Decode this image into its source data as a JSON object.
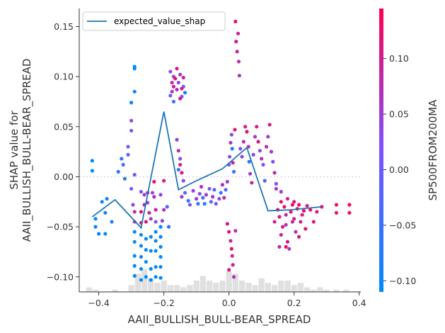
{
  "chart_data": {
    "type": "scatter",
    "title": "",
    "xlabel": "AAII_BULLISH_BULL-BEAR_SPREAD",
    "ylabel_lines": [
      "SHAP value for",
      "AAII_BULLISH_BULL-BEAR_SPREAD"
    ],
    "xlim": [
      -0.46,
      0.405
    ],
    "ylim": [
      -0.115,
      0.168
    ],
    "x_ticks": [
      -0.4,
      -0.2,
      0.0,
      0.2,
      0.4
    ],
    "x_tick_labels": [
      "−0.4",
      "−0.2",
      "0.0",
      "0.2",
      "0.4"
    ],
    "y_ticks": [
      -0.1,
      -0.05,
      0.0,
      0.05,
      0.1,
      0.15
    ],
    "y_tick_labels": [
      "−0.10",
      "−0.05",
      "0.00",
      "0.05",
      "0.10",
      "0.15"
    ],
    "zero_line": 0.0,
    "legend": {
      "entries": [
        "expected_value_shap"
      ],
      "placement": "top-left"
    },
    "line_series": {
      "name": "expected_value_shap",
      "color": "#1f77b4",
      "x": [
        -0.42,
        -0.35,
        -0.27,
        -0.2,
        -0.155,
        -0.1,
        -0.02,
        0.055,
        0.12,
        0.19,
        0.285
      ],
      "y": [
        -0.04,
        -0.023,
        -0.051,
        0.065,
        -0.013,
        -0.004,
        0.008,
        0.029,
        -0.034,
        -0.033,
        -0.03
      ]
    },
    "colorbar": {
      "label": "SP500FROM200MA",
      "range": [
        -0.11,
        0.145
      ],
      "ticks": [
        -0.1,
        -0.05,
        0.0,
        0.05,
        0.1
      ],
      "tick_labels": [
        "−0.10",
        "−0.05",
        "0.00",
        "0.05",
        "0.10"
      ],
      "low_color": "#008afb",
      "mid_color": "#7c52ff",
      "high_color": "#ff0052"
    },
    "histogram": {
      "color": "#e0e0e0",
      "bins": [
        [
          -0.43,
          2
        ],
        [
          -0.41,
          1
        ],
        [
          -0.35,
          1
        ],
        [
          -0.3,
          3
        ],
        [
          -0.28,
          8
        ],
        [
          -0.26,
          10
        ],
        [
          -0.24,
          6
        ],
        [
          -0.22,
          4
        ],
        [
          -0.2,
          5
        ],
        [
          -0.18,
          3
        ],
        [
          -0.16,
          3
        ],
        [
          -0.14,
          2
        ],
        [
          -0.12,
          3
        ],
        [
          -0.1,
          5
        ],
        [
          -0.08,
          7
        ],
        [
          -0.06,
          5
        ],
        [
          -0.04,
          4
        ],
        [
          -0.02,
          5
        ],
        [
          0.0,
          9
        ],
        [
          0.02,
          8
        ],
        [
          0.04,
          5
        ],
        [
          0.06,
          4
        ],
        [
          0.08,
          3
        ],
        [
          0.1,
          6
        ],
        [
          0.12,
          4
        ],
        [
          0.14,
          3
        ],
        [
          0.16,
          5
        ],
        [
          0.18,
          5
        ],
        [
          0.2,
          3
        ],
        [
          0.22,
          4
        ],
        [
          0.24,
          2
        ],
        [
          0.26,
          1
        ],
        [
          0.28,
          2
        ],
        [
          0.3,
          1
        ],
        [
          0.33,
          1
        ],
        [
          0.36,
          1
        ]
      ]
    },
    "points": [
      [
        -0.42,
        0.016,
        -0.11
      ],
      [
        -0.42,
        0.006,
        -0.11
      ],
      [
        -0.41,
        -0.042,
        -0.1
      ],
      [
        -0.41,
        -0.05,
        -0.1
      ],
      [
        -0.4,
        -0.057,
        -0.1
      ],
      [
        -0.38,
        -0.057,
        -0.11
      ],
      [
        -0.39,
        -0.025,
        -0.1
      ],
      [
        -0.38,
        -0.036,
        -0.1
      ],
      [
        -0.375,
        -0.022,
        -0.09
      ],
      [
        -0.36,
        -0.045,
        -0.08
      ],
      [
        -0.34,
        0.005,
        -0.07
      ],
      [
        -0.33,
        0.018,
        -0.06
      ],
      [
        -0.325,
        0.012,
        -0.04
      ],
      [
        -0.32,
        -0.002,
        -0.08
      ],
      [
        -0.31,
        0.022,
        -0.02
      ],
      [
        -0.31,
        0.03,
        0.0
      ],
      [
        -0.3,
        0.046,
        0.02
      ],
      [
        -0.3,
        0.056,
        0.03
      ],
      [
        -0.3,
        -0.012,
        0.01
      ],
      [
        -0.295,
        -0.028,
        0.04
      ],
      [
        -0.29,
        0.11,
        -0.11
      ],
      [
        -0.29,
        0.108,
        -0.11
      ],
      [
        -0.29,
        0.085,
        -0.1
      ],
      [
        -0.3,
        0.074,
        -0.09
      ],
      [
        -0.29,
        0.002,
        0.0
      ],
      [
        -0.29,
        -0.035,
        0.08
      ],
      [
        -0.29,
        -0.045,
        0.07
      ],
      [
        -0.29,
        -0.055,
        -0.11
      ],
      [
        -0.29,
        -0.065,
        -0.11
      ],
      [
        -0.29,
        -0.079,
        -0.11
      ],
      [
        -0.29,
        -0.089,
        -0.11
      ],
      [
        -0.29,
        -0.099,
        -0.11
      ],
      [
        -0.27,
        -0.035,
        0.12
      ],
      [
        -0.27,
        -0.046,
        0.1
      ],
      [
        -0.27,
        -0.058,
        -0.1
      ],
      [
        -0.27,
        -0.069,
        -0.1
      ],
      [
        -0.27,
        -0.08,
        -0.1
      ],
      [
        -0.27,
        -0.092,
        -0.11
      ],
      [
        -0.27,
        -0.103,
        -0.11
      ],
      [
        -0.27,
        -0.015,
        0.02
      ],
      [
        -0.26,
        -0.018,
        0.05
      ],
      [
        -0.26,
        -0.028,
        0.09
      ],
      [
        -0.255,
        -0.045,
        0.11
      ],
      [
        -0.255,
        -0.062,
        -0.11
      ],
      [
        -0.255,
        -0.073,
        -0.11
      ],
      [
        -0.255,
        -0.085,
        -0.11
      ],
      [
        -0.255,
        -0.1,
        -0.11
      ],
      [
        -0.25,
        -0.016,
        0.07
      ],
      [
        -0.25,
        -0.026,
        0.04
      ],
      [
        -0.245,
        -0.036,
        0.09
      ],
      [
        -0.24,
        -0.042,
        0.06
      ],
      [
        -0.24,
        -0.06,
        -0.11
      ],
      [
        -0.24,
        -0.074,
        -0.11
      ],
      [
        -0.24,
        -0.092,
        -0.11
      ],
      [
        -0.24,
        -0.103,
        -0.11
      ],
      [
        -0.235,
        -0.016,
        0.03
      ],
      [
        -0.23,
        -0.005,
        0.12
      ],
      [
        -0.23,
        -0.02,
        0.08
      ],
      [
        -0.225,
        -0.033,
        0.1
      ],
      [
        -0.225,
        -0.045,
        0.02
      ],
      [
        -0.225,
        -0.055,
        -0.11
      ],
      [
        -0.225,
        -0.064,
        -0.11
      ],
      [
        -0.225,
        -0.074,
        -0.11
      ],
      [
        -0.225,
        -0.09,
        -0.11
      ],
      [
        -0.225,
        -0.1,
        -0.11
      ],
      [
        -0.21,
        -0.018,
        0.04
      ],
      [
        -0.21,
        -0.05,
        -0.11
      ],
      [
        -0.21,
        -0.06,
        -0.11
      ],
      [
        -0.21,
        -0.07,
        -0.11
      ],
      [
        -0.21,
        -0.08,
        -0.11
      ],
      [
        -0.21,
        -0.09,
        -0.11
      ],
      [
        -0.21,
        -0.101,
        -0.11
      ],
      [
        -0.2,
        -0.004,
        0.1
      ],
      [
        -0.2,
        -0.033,
        0.07
      ],
      [
        -0.205,
        -0.044,
        0.04
      ],
      [
        -0.19,
        -0.03,
        -0.02
      ],
      [
        -0.185,
        -0.05,
        -0.05
      ],
      [
        -0.18,
        0.105,
        0.03
      ],
      [
        -0.175,
        0.094,
        0.08
      ],
      [
        -0.175,
        0.085,
        0.06
      ],
      [
        -0.17,
        0.1,
        0.05
      ],
      [
        -0.17,
        0.09,
        0.09
      ],
      [
        -0.165,
        0.098,
        0.12
      ],
      [
        -0.16,
        0.108,
        0.1
      ],
      [
        -0.16,
        0.087,
        0.07
      ],
      [
        -0.155,
        0.094,
        0.04
      ],
      [
        -0.15,
        0.102,
        0.06
      ],
      [
        -0.145,
        0.08,
        0.02
      ],
      [
        -0.14,
        0.09,
        0.01
      ],
      [
        -0.14,
        0.099,
        0.09
      ],
      [
        -0.18,
        0.081,
        -0.02
      ],
      [
        -0.17,
        0.075,
        -0.05
      ],
      [
        -0.15,
        0.078,
        0.11
      ],
      [
        -0.145,
        0.088,
        0.11
      ],
      [
        -0.135,
        0.084,
        -0.08
      ],
      [
        -0.16,
        0.037,
        0.05
      ],
      [
        -0.155,
        0.026,
        0.08
      ],
      [
        -0.15,
        0.018,
        0.03
      ],
      [
        -0.15,
        0.012,
        0.09
      ],
      [
        -0.155,
        0.007,
        -0.06
      ],
      [
        -0.145,
        0.004,
        0.12
      ],
      [
        -0.14,
        -0.004,
        0.02
      ],
      [
        -0.135,
        -0.016,
        -0.03
      ],
      [
        -0.145,
        -0.02,
        0.05
      ],
      [
        -0.125,
        -0.024,
        -0.07
      ],
      [
        -0.12,
        -0.028,
        0.01
      ],
      [
        -0.11,
        -0.014,
        0.04
      ],
      [
        -0.1,
        -0.022,
        0.06
      ],
      [
        -0.095,
        -0.027,
        -0.05
      ],
      [
        -0.09,
        -0.017,
        0.03
      ],
      [
        -0.085,
        -0.01,
        0.07
      ],
      [
        -0.08,
        -0.021,
        -0.04
      ],
      [
        -0.075,
        -0.027,
        -0.08
      ],
      [
        -0.07,
        -0.018,
        0.05
      ],
      [
        -0.06,
        -0.012,
        0.02
      ],
      [
        -0.055,
        -0.025,
        -0.02
      ],
      [
        -0.05,
        -0.02,
        0.06
      ],
      [
        -0.045,
        -0.013,
        -0.03
      ],
      [
        -0.04,
        -0.027,
        0.01
      ],
      [
        -0.03,
        -0.022,
        0.04
      ],
      [
        -0.025,
        -0.016,
        -0.06
      ],
      [
        -0.02,
        -0.008,
        0.07
      ],
      [
        -0.015,
        -0.021,
        0.08
      ],
      [
        -0.01,
        -0.013,
        -0.02
      ],
      [
        -0.005,
        -0.005,
        0.05
      ],
      [
        0.0,
        0.012,
        0.0
      ],
      [
        0.002,
        0.02,
        0.02
      ],
      [
        0.005,
        0.034,
        0.06
      ],
      [
        0.008,
        0.042,
        0.04
      ],
      [
        0.01,
        0.028,
        -0.07
      ],
      [
        0.012,
        0.014,
        0.09
      ],
      [
        0.015,
        0.005,
        -0.04
      ],
      [
        0.018,
        0.047,
        0.11
      ],
      [
        0.02,
        0.155,
        0.12
      ],
      [
        0.022,
        0.135,
        0.1
      ],
      [
        0.025,
        0.125,
        0.08
      ],
      [
        0.028,
        0.143,
        0.09
      ],
      [
        0.03,
        0.115,
        0.07
      ],
      [
        0.032,
        0.101,
        0.06
      ],
      [
        0.035,
        0.028,
        0.03
      ],
      [
        -0.005,
        -0.047,
        0.1
      ],
      [
        0.0,
        -0.055,
        0.11
      ],
      [
        0.005,
        -0.064,
        0.09
      ],
      [
        0.008,
        -0.072,
        0.12
      ],
      [
        0.01,
        -0.079,
        0.08
      ],
      [
        0.012,
        -0.088,
        0.1
      ],
      [
        0.0,
        -0.093,
        0.11
      ],
      [
        0.015,
        -0.1,
        0.07
      ],
      [
        0.02,
        -0.054,
        0.06
      ],
      [
        0.04,
        0.02,
        0.04
      ],
      [
        0.045,
        0.035,
        0.07
      ],
      [
        0.05,
        0.05,
        0.1
      ],
      [
        0.055,
        0.045,
        0.12
      ],
      [
        0.06,
        0.03,
        0.08
      ],
      [
        0.062,
        0.015,
        -0.05
      ],
      [
        0.065,
        0.003,
        0.05
      ],
      [
        0.07,
        -0.006,
        0.09
      ],
      [
        0.075,
        0.022,
        0.03
      ],
      [
        0.08,
        0.04,
        0.06
      ],
      [
        0.085,
        0.05,
        0.1
      ],
      [
        0.09,
        0.035,
        0.11
      ],
      [
        0.095,
        0.026,
        0.04
      ],
      [
        0.1,
        0.018,
        0.07
      ],
      [
        0.105,
        0.012,
        0.02
      ],
      [
        0.11,
        -0.004,
        -0.03
      ],
      [
        0.115,
        0.03,
        0.08
      ],
      [
        0.12,
        0.04,
        0.05
      ],
      [
        0.125,
        0.052,
        0.1
      ],
      [
        0.13,
        0.025,
        0.06
      ],
      [
        0.135,
        0.015,
        0.03
      ],
      [
        0.14,
        0.004,
        0.09
      ],
      [
        0.145,
        -0.007,
        0.01
      ],
      [
        0.15,
        -0.033,
        0.12
      ],
      [
        0.155,
        -0.04,
        0.11
      ],
      [
        0.16,
        -0.025,
        0.13
      ],
      [
        0.165,
        -0.05,
        0.1
      ],
      [
        0.17,
        -0.03,
        0.12
      ],
      [
        0.175,
        -0.038,
        0.08
      ],
      [
        0.18,
        -0.065,
        0.11
      ],
      [
        0.185,
        -0.072,
        0.06
      ],
      [
        0.19,
        -0.035,
        0.12
      ],
      [
        0.195,
        -0.028,
        0.13
      ],
      [
        0.2,
        -0.042,
        0.1
      ],
      [
        0.205,
        -0.055,
        0.07
      ],
      [
        0.21,
        -0.032,
        0.13
      ],
      [
        0.215,
        -0.028,
        0.12
      ],
      [
        0.22,
        -0.045,
        0.09
      ],
      [
        0.225,
        -0.038,
        0.11
      ],
      [
        0.23,
        -0.034,
        0.13
      ],
      [
        0.235,
        -0.052,
        0.12
      ],
      [
        0.24,
        -0.029,
        0.1
      ],
      [
        0.25,
        -0.033,
        0.13
      ],
      [
        0.26,
        -0.045,
        0.12
      ],
      [
        0.27,
        -0.035,
        0.11
      ],
      [
        0.285,
        -0.03,
        0.13
      ],
      [
        0.33,
        -0.028,
        0.13
      ],
      [
        0.33,
        -0.036,
        0.12
      ],
      [
        0.37,
        -0.028,
        0.14
      ],
      [
        0.37,
        -0.036,
        0.13
      ],
      [
        0.145,
        -0.012,
        0.07
      ],
      [
        0.16,
        -0.015,
        0.05
      ],
      [
        0.18,
        -0.022,
        0.09
      ],
      [
        0.2,
        -0.025,
        0.11
      ],
      [
        0.14,
        -0.045,
        0.09
      ],
      [
        0.16,
        -0.058,
        0.1
      ],
      [
        0.175,
        -0.07,
        0.13
      ],
      [
        0.155,
        -0.07,
        0.08
      ],
      [
        0.175,
        -0.048,
        0.07
      ],
      [
        0.195,
        -0.045,
        0.09
      ],
      [
        0.215,
        -0.06,
        0.11
      ]
    ]
  }
}
